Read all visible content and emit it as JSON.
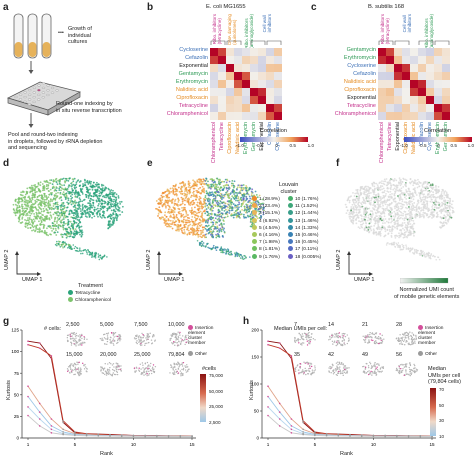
{
  "panel_labels": {
    "a": "a",
    "b": "b",
    "c": "c",
    "d": "d",
    "e": "e",
    "f": "f",
    "g": "g",
    "h": "h"
  },
  "panel_a": {
    "growth_label": "Growth of\nindividual\ncultures",
    "round_one": "Round-one indexing by\nin situ reverse transcription",
    "pool": "Pool and round-two indexing\nin droplets, followed by rRNA depletion\nand sequencing",
    "dots": "•••"
  },
  "panel_b": {
    "title": "E. coli MG1655",
    "row_labels": [
      {
        "text": "Cycloserine",
        "color": "#3b6fb6"
      },
      {
        "text": "Cefazolin",
        "color": "#3b6fb6"
      },
      {
        "text": "Exponential",
        "color": "#222222"
      },
      {
        "text": "Gentamycin",
        "color": "#2e9a55"
      },
      {
        "text": "Erythromycin",
        "color": "#2e9a55"
      },
      {
        "text": "Nalidixic acid",
        "color": "#e58a1f"
      },
      {
        "text": "Ciprofloxacin",
        "color": "#e58a1f"
      },
      {
        "text": "Tetracycline",
        "color": "#c4318c"
      },
      {
        "text": "Chloramphenicol",
        "color": "#c4318c"
      }
    ],
    "group_labels": [
      {
        "text": "Ribo. inhibitors\n(tetracycline)",
        "color": "#c4318c"
      },
      {
        "text": "DNA damaging\n(quinolones)",
        "color": "#e58a1f"
      },
      {
        "text": "Ribo. inhibitors\n(aminoglycoside)",
        "color": "#2e9a55"
      },
      {
        "text": "Cell wall\ninhibitors",
        "color": "#3b6fb6"
      }
    ],
    "col_labels": [
      {
        "text": "Chloramphenicol",
        "color": "#c4318c"
      },
      {
        "text": "Tetracycline",
        "color": "#c4318c"
      },
      {
        "text": "Ciprofloxacin",
        "color": "#e58a1f"
      },
      {
        "text": "Nalidixic acid",
        "color": "#e58a1f"
      },
      {
        "text": "Erythromycin",
        "color": "#2e9a55"
      },
      {
        "text": "Gentamycin",
        "color": "#2e9a55"
      },
      {
        "text": "Exponential",
        "color": "#222222"
      },
      {
        "text": "Cefazolin",
        "color": "#3b6fb6"
      },
      {
        "text": "Cycloserine",
        "color": "#3b6fb6"
      }
    ],
    "colorbar_title": "Correlation",
    "colorbar_ticks": [
      "-1.0",
      "-0.5",
      "0",
      "0.5",
      "1.0"
    ]
  },
  "panel_c": {
    "title": "B. subtilis 168",
    "row_labels": [
      {
        "text": "Gentamycin",
        "color": "#2e9a55"
      },
      {
        "text": "Erythromycin",
        "color": "#2e9a55"
      },
      {
        "text": "Cycloserine",
        "color": "#3b6fb6"
      },
      {
        "text": "Cefazolin",
        "color": "#3b6fb6"
      },
      {
        "text": "Nalidixic acid",
        "color": "#e58a1f"
      },
      {
        "text": "Ciprofloxacin",
        "color": "#e58a1f"
      },
      {
        "text": "Exponential",
        "color": "#222222"
      },
      {
        "text": "Tetracycline",
        "color": "#c4318c"
      },
      {
        "text": "Chloramphenicol",
        "color": "#c4318c"
      }
    ],
    "group_labels": [
      {
        "text": "Ribo. inhibitors\n(tetracycline)",
        "color": "#c4318c"
      },
      {
        "text": "Cell wall\ninhibitors",
        "color": "#3b6fb6"
      },
      {
        "text": "Ribo. inhibitors\n(aminoglycoside)",
        "color": "#2e9a55"
      }
    ],
    "col_labels": [
      {
        "text": "Chloramphenicol",
        "color": "#c4318c"
      },
      {
        "text": "Tetracycline",
        "color": "#c4318c"
      },
      {
        "text": "Exponential",
        "color": "#222222"
      },
      {
        "text": "Ciprofloxacin",
        "color": "#e58a1f"
      },
      {
        "text": "Nalidixic acid",
        "color": "#e58a1f"
      },
      {
        "text": "Cefazolin",
        "color": "#3b6fb6"
      },
      {
        "text": "Cycloserine",
        "color": "#3b6fb6"
      },
      {
        "text": "Erythromycin",
        "color": "#2e9a55"
      },
      {
        "text": "Gentamycin",
        "color": "#2e9a55"
      }
    ],
    "colorbar_title": "Correlation",
    "colorbar_ticks": [
      "-1.0",
      "-0.5",
      "0",
      "0.5",
      "1.0"
    ]
  },
  "panel_d": {
    "umap1": "UMAP 1",
    "umap2": "UMAP 2",
    "legend_title": "Treatment",
    "legend": [
      {
        "text": "Tetracycline",
        "color": "#2aa37a"
      },
      {
        "text": "Chloramphenicol",
        "color": "#7cc36b"
      }
    ]
  },
  "panel_e": {
    "umap1": "UMAP 1",
    "umap2": "UMAP 2",
    "legend_title": "Louvain\ncluster",
    "legend_col1": [
      {
        "text": "1 (28.9%)",
        "color": "#f08a2c"
      },
      {
        "text": "2 (23.4%)",
        "color": "#f2a54a"
      },
      {
        "text": "3 (15.1%)",
        "color": "#e8b65a"
      },
      {
        "text": "4 (6.92%)",
        "color": "#d9c45c"
      },
      {
        "text": "5 (4.54%)",
        "color": "#bfc95c"
      },
      {
        "text": "6 (4.16%)",
        "color": "#a7c95c"
      },
      {
        "text": "7 (1.98%)",
        "color": "#8cc65c"
      },
      {
        "text": "8 (1.81%)",
        "color": "#6fc060"
      },
      {
        "text": "9 (1.76%)",
        "color": "#5ab863"
      }
    ],
    "legend_col2": [
      {
        "text": "10 (1.76%)",
        "color": "#48b06a"
      },
      {
        "text": "11 (1.52%)",
        "color": "#3ea77a"
      },
      {
        "text": "12 (1.44%)",
        "color": "#389e8a"
      },
      {
        "text": "13 (1.46%)",
        "color": "#34959a"
      },
      {
        "text": "14 (1.33%)",
        "color": "#338ca8"
      },
      {
        "text": "15 (0.46%)",
        "color": "#3982b4"
      },
      {
        "text": "16 (0.45%)",
        "color": "#4677bd"
      },
      {
        "text": "17 (0.11%)",
        "color": "#566bc2"
      },
      {
        "text": "18 (0.005%)",
        "color": "#6a5fc3"
      }
    ]
  },
  "panel_f": {
    "umap1": "UMAP 1",
    "umap2": "UMAP 2",
    "colorbar_caption": "Normalized UMI count\nof mobile genetic elements"
  },
  "panel_g": {
    "ylabel": "Kurtosis",
    "xlabel": "Rank",
    "y_ticks": [
      "0",
      "25",
      "50",
      "75",
      "100",
      "125"
    ],
    "x_ticks": [
      "1",
      "5",
      "10",
      "15"
    ],
    "cells_label": "# cells:",
    "cell_counts": [
      "2,500",
      "5,000",
      "7,500",
      "10,000",
      "15,000",
      "20,000",
      "25,000",
      "79,804"
    ],
    "legend": [
      {
        "text": "Insertion\nelement\ncluster\nmember",
        "color": "#d44f9b"
      },
      {
        "text": "Other",
        "color": "#9a9a9a"
      }
    ],
    "colorbar_title": "#cells",
    "colorbar_ticks": [
      "75,000",
      "50,000",
      "25,000",
      "2,500"
    ]
  },
  "panel_h": {
    "ylabel": "Kurtosis",
    "xlabel": "Rank",
    "y_ticks": [
      "0",
      "50",
      "100",
      "150",
      "200"
    ],
    "x_ticks": [
      "1",
      "5",
      "10",
      "15"
    ],
    "median_label": "Median UMIs per cell:",
    "umi_counts": [
      "7",
      "14",
      "21",
      "28",
      "35",
      "42",
      "49",
      "56"
    ],
    "legend": [
      {
        "text": "Insertion\nelement\ncluster\nmember",
        "color": "#d44f9b"
      },
      {
        "text": "Other",
        "color": "#9a9a9a"
      }
    ],
    "colorbar_title": "Median\nUMIs per cell\n(79,804 cells)",
    "colorbar_ticks": [
      "70",
      "50",
      "30",
      "10"
    ]
  }
}
